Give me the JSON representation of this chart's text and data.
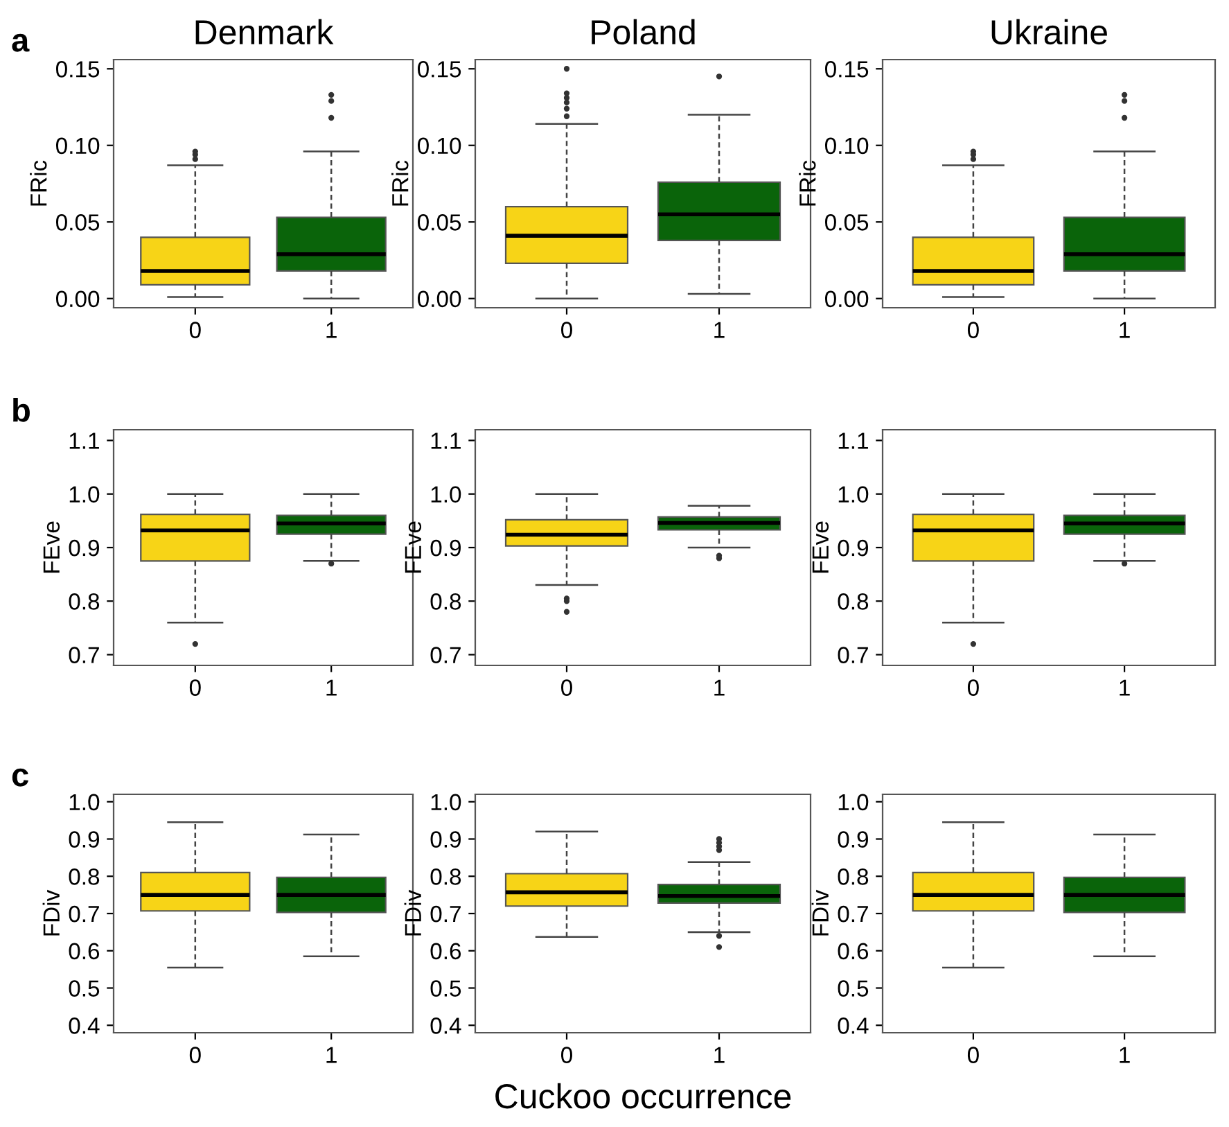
{
  "chart_data": [
    {
      "type": "box",
      "title": "Denmark",
      "ylabel": "FRic",
      "annotations": [
        "a"
      ],
      "categories": [
        "0",
        "1"
      ],
      "colors": [
        "#f7d417",
        "#0a640a"
      ],
      "ylim": [
        -0.006,
        0.156
      ],
      "yticks": [
        {
          "value": 0,
          "label": "0.00"
        },
        {
          "value": 0.05,
          "label": "0.05"
        },
        {
          "value": 0.1,
          "label": "0.10"
        },
        {
          "value": 0.15,
          "label": "0.15"
        }
      ],
      "grid": false,
      "boxes": [
        {
          "low": 0.001,
          "q1": 0.009,
          "median": 0.018,
          "q3": 0.04,
          "high": 0.087,
          "outliers": [
            0.091,
            0.094,
            0.096
          ]
        },
        {
          "low": 0.0,
          "q1": 0.018,
          "median": 0.029,
          "q3": 0.053,
          "high": 0.096,
          "outliers": [
            0.118,
            0.129,
            0.133
          ]
        }
      ]
    },
    {
      "type": "box",
      "title": "Poland",
      "ylabel": "FRic",
      "categories": [
        "0",
        "1"
      ],
      "colors": [
        "#f7d417",
        "#0a640a"
      ],
      "ylim": [
        -0.006,
        0.156
      ],
      "yticks": [
        {
          "value": 0,
          "label": "0.00"
        },
        {
          "value": 0.05,
          "label": "0.05"
        },
        {
          "value": 0.1,
          "label": "0.10"
        },
        {
          "value": 0.15,
          "label": "0.15"
        }
      ],
      "grid": false,
      "boxes": [
        {
          "low": 0.0,
          "q1": 0.023,
          "median": 0.041,
          "q3": 0.06,
          "high": 0.114,
          "outliers": [
            0.119,
            0.124,
            0.128,
            0.131,
            0.134,
            0.15
          ]
        },
        {
          "low": 0.003,
          "q1": 0.038,
          "median": 0.055,
          "q3": 0.076,
          "high": 0.12,
          "outliers": [
            0.145
          ]
        }
      ]
    },
    {
      "type": "box",
      "title": "Ukraine",
      "ylabel": "FRic",
      "categories": [
        "0",
        "1"
      ],
      "colors": [
        "#f7d417",
        "#0a640a"
      ],
      "ylim": [
        -0.006,
        0.156
      ],
      "yticks": [
        {
          "value": 0,
          "label": "0.00"
        },
        {
          "value": 0.05,
          "label": "0.05"
        },
        {
          "value": 0.1,
          "label": "0.10"
        },
        {
          "value": 0.15,
          "label": "0.15"
        }
      ],
      "grid": false,
      "boxes": [
        {
          "low": 0.001,
          "q1": 0.009,
          "median": 0.018,
          "q3": 0.04,
          "high": 0.087,
          "outliers": [
            0.091,
            0.094,
            0.096
          ]
        },
        {
          "low": 0.0,
          "q1": 0.018,
          "median": 0.029,
          "q3": 0.053,
          "high": 0.096,
          "outliers": [
            0.118,
            0.129,
            0.133
          ]
        }
      ]
    },
    {
      "type": "box",
      "ylabel": "FEve",
      "annotations": [
        "b"
      ],
      "categories": [
        "0",
        "1"
      ],
      "colors": [
        "#f7d417",
        "#0a640a"
      ],
      "ylim": [
        0.68,
        1.12
      ],
      "yticks": [
        0.7,
        0.8,
        0.9,
        {
          "value": 1.0,
          "label": "1.0"
        },
        1.1
      ],
      "grid": false,
      "boxes": [
        {
          "low": 0.76,
          "q1": 0.875,
          "median": 0.932,
          "q3": 0.962,
          "high": 1.0,
          "outliers": [
            0.72
          ]
        },
        {
          "low": 0.875,
          "q1": 0.925,
          "median": 0.945,
          "q3": 0.96,
          "high": 1.0,
          "outliers": [
            0.87
          ]
        }
      ]
    },
    {
      "type": "box",
      "ylabel": "FEve",
      "categories": [
        "0",
        "1"
      ],
      "colors": [
        "#f7d417",
        "#0a640a"
      ],
      "ylim": [
        0.68,
        1.12
      ],
      "yticks": [
        0.7,
        0.8,
        0.9,
        {
          "value": 1.0,
          "label": "1.0"
        },
        1.1
      ],
      "grid": false,
      "boxes": [
        {
          "low": 0.83,
          "q1": 0.903,
          "median": 0.924,
          "q3": 0.952,
          "high": 1.0,
          "outliers": [
            0.805,
            0.8,
            0.78
          ]
        },
        {
          "low": 0.9,
          "q1": 0.933,
          "median": 0.946,
          "q3": 0.957,
          "high": 0.978,
          "outliers": [
            0.885,
            0.88
          ]
        }
      ]
    },
    {
      "type": "box",
      "ylabel": "FEve",
      "categories": [
        "0",
        "1"
      ],
      "colors": [
        "#f7d417",
        "#0a640a"
      ],
      "ylim": [
        0.68,
        1.12
      ],
      "yticks": [
        0.7,
        0.8,
        0.9,
        {
          "value": 1.0,
          "label": "1.0"
        },
        1.1
      ],
      "grid": false,
      "boxes": [
        {
          "low": 0.76,
          "q1": 0.875,
          "median": 0.932,
          "q3": 0.962,
          "high": 1.0,
          "outliers": [
            0.72
          ]
        },
        {
          "low": 0.875,
          "q1": 0.925,
          "median": 0.945,
          "q3": 0.96,
          "high": 1.0,
          "outliers": [
            0.87
          ]
        }
      ]
    },
    {
      "type": "box",
      "ylabel": "FDiv",
      "annotations": [
        "c"
      ],
      "categories": [
        "0",
        "1"
      ],
      "colors": [
        "#f7d417",
        "#0a640a"
      ],
      "ylim": [
        0.38,
        1.02
      ],
      "yticks": [
        0.4,
        0.5,
        0.6,
        0.7,
        0.8,
        0.9,
        {
          "value": 1.0,
          "label": "1.0"
        }
      ],
      "grid": false,
      "boxes": [
        {
          "low": 0.555,
          "q1": 0.707,
          "median": 0.75,
          "q3": 0.81,
          "high": 0.945
        },
        {
          "low": 0.585,
          "q1": 0.703,
          "median": 0.75,
          "q3": 0.797,
          "high": 0.912
        }
      ]
    },
    {
      "type": "box",
      "ylabel": "FDiv",
      "xlabel": "Cuckoo occurrence",
      "categories": [
        "0",
        "1"
      ],
      "colors": [
        "#f7d417",
        "#0a640a"
      ],
      "ylim": [
        0.38,
        1.02
      ],
      "yticks": [
        0.4,
        0.5,
        0.6,
        0.7,
        0.8,
        0.9,
        {
          "value": 1.0,
          "label": "1.0"
        }
      ],
      "grid": false,
      "boxes": [
        {
          "low": 0.637,
          "q1": 0.72,
          "median": 0.757,
          "q3": 0.807,
          "high": 0.92
        },
        {
          "low": 0.65,
          "q1": 0.728,
          "median": 0.747,
          "q3": 0.778,
          "high": 0.838,
          "outliers": [
            0.87,
            0.88,
            0.89,
            0.9,
            0.64,
            0.61
          ]
        }
      ]
    },
    {
      "type": "box",
      "ylabel": "FDiv",
      "categories": [
        "0",
        "1"
      ],
      "colors": [
        "#f7d417",
        "#0a640a"
      ],
      "ylim": [
        0.38,
        1.02
      ],
      "yticks": [
        0.4,
        0.5,
        0.6,
        0.7,
        0.8,
        0.9,
        {
          "value": 1.0,
          "label": "1.0"
        }
      ],
      "grid": false,
      "boxes": [
        {
          "low": 0.555,
          "q1": 0.707,
          "median": 0.75,
          "q3": 0.81,
          "high": 0.945
        },
        {
          "low": 0.585,
          "q1": 0.703,
          "median": 0.75,
          "q3": 0.797,
          "high": 0.912
        }
      ]
    }
  ]
}
